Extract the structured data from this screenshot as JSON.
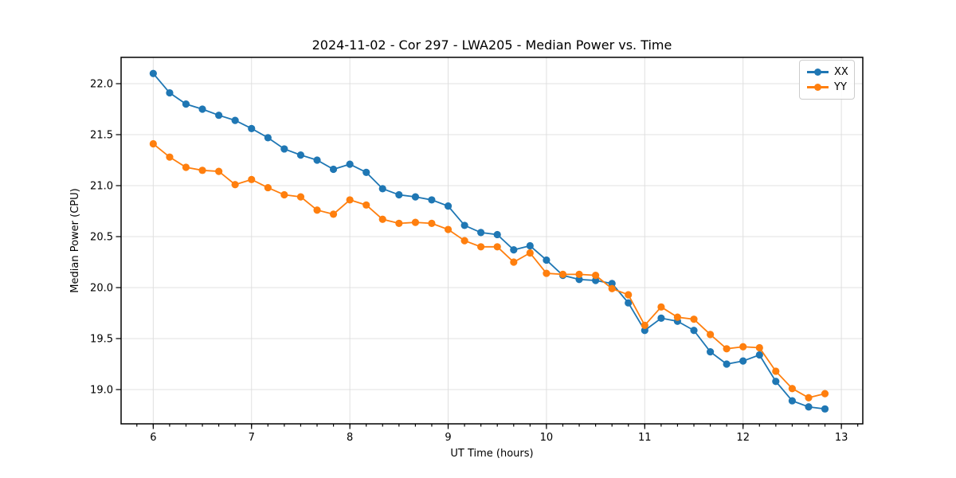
{
  "header": {
    "title": "2024-11-02 - Cor 297 - LWA205 - Median Power vs. Time"
  },
  "chart_data": {
    "type": "line",
    "title": "2024-11-02 - Cor 297 - LWA205 - Median Power vs. Time",
    "xlabel": "UT Time (hours)",
    "ylabel": "Median Power (CPU)",
    "x_range": [
      5.673,
      13.218
    ],
    "y_range": [
      18.664,
      22.258
    ],
    "x_ticks": [
      6,
      7,
      8,
      9,
      10,
      11,
      12,
      13
    ],
    "x_tick_labels": [
      "6",
      "7",
      "8",
      "9",
      "10",
      "11",
      "12",
      "13"
    ],
    "x_minor_tick_step": 0.1666667,
    "y_ticks": [
      19.0,
      19.5,
      20.0,
      20.5,
      21.0,
      21.5,
      22.0
    ],
    "y_tick_labels": [
      "19.0",
      "19.5",
      "20.0",
      "20.5",
      "21.0",
      "21.5",
      "22.0"
    ],
    "grid": true,
    "grid_color": "#e0e0e0",
    "spine_color": "#000000",
    "legend_position": "upper right",
    "x": [
      6.0,
      6.167,
      6.333,
      6.5,
      6.667,
      6.833,
      7.0,
      7.167,
      7.333,
      7.5,
      7.667,
      7.833,
      8.0,
      8.167,
      8.333,
      8.5,
      8.667,
      8.833,
      9.0,
      9.167,
      9.333,
      9.5,
      9.667,
      9.833,
      10.0,
      10.167,
      10.333,
      10.5,
      10.667,
      10.833,
      11.0,
      11.167,
      11.333,
      11.5,
      11.667,
      11.833,
      12.0,
      12.167,
      12.333,
      12.5,
      12.667,
      12.833
    ],
    "series": [
      {
        "name": "XX",
        "color": "#1f77b4",
        "values": [
          22.1,
          21.91,
          21.8,
          21.75,
          21.69,
          21.64,
          21.56,
          21.47,
          21.36,
          21.3,
          21.25,
          21.16,
          21.21,
          21.13,
          20.97,
          20.91,
          20.89,
          20.86,
          20.8,
          20.61,
          20.54,
          20.52,
          20.37,
          20.41,
          20.27,
          20.12,
          20.08,
          20.07,
          20.04,
          19.85,
          19.58,
          19.7,
          19.67,
          19.58,
          19.37,
          19.25,
          19.28,
          19.34,
          19.08,
          18.89,
          18.83,
          18.81
        ]
      },
      {
        "name": "YY",
        "color": "#ff7f0e",
        "values": [
          21.41,
          21.28,
          21.18,
          21.15,
          21.14,
          21.01,
          21.06,
          20.98,
          20.91,
          20.89,
          20.76,
          20.72,
          20.86,
          20.81,
          20.67,
          20.63,
          20.64,
          20.63,
          20.57,
          20.46,
          20.4,
          20.4,
          20.25,
          20.34,
          20.14,
          20.13,
          20.13,
          20.12,
          19.99,
          19.93,
          19.63,
          19.81,
          19.71,
          19.69,
          19.54,
          19.4,
          19.42,
          19.41,
          19.18,
          19.01,
          18.92,
          18.96
        ]
      }
    ]
  }
}
